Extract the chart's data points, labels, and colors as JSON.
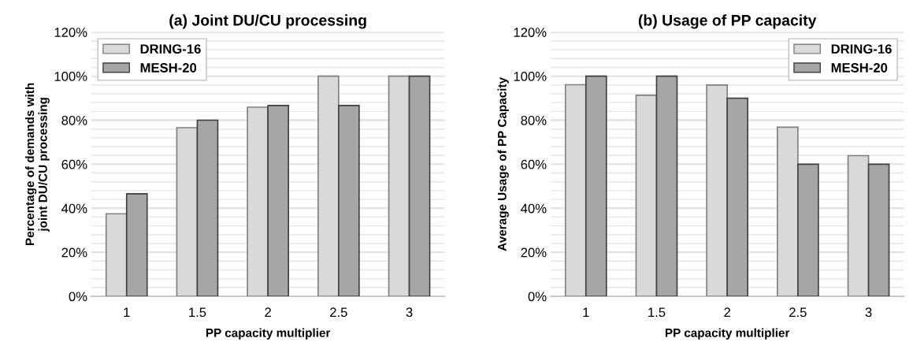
{
  "chart_data": [
    {
      "type": "bar",
      "title": "(a) Joint DU/CU processing",
      "xlabel": "PP capacity multiplier",
      "ylabel": "Percentage of demands with\njoint DU/CU processing",
      "categories": [
        "1",
        "1.5",
        "2",
        "2.5",
        "3"
      ],
      "series": [
        {
          "name": "DRING-16",
          "color": "#d9d9d9",
          "values": [
            37.5,
            76.6,
            85.9,
            100,
            100
          ]
        },
        {
          "name": "MESH-20",
          "color": "#a6a6a6",
          "values": [
            46.6,
            80,
            86.7,
            86.7,
            100
          ]
        }
      ],
      "ylim": [
        0,
        120
      ],
      "yticks": [
        {
          "value": 0,
          "label": "0%"
        },
        {
          "value": 4,
          "label": null
        },
        {
          "value": 8,
          "label": null
        },
        {
          "value": 12,
          "label": null
        },
        {
          "value": 16,
          "label": null
        },
        {
          "value": 20,
          "label": "20%"
        },
        {
          "value": 24,
          "label": null
        },
        {
          "value": 28,
          "label": null
        },
        {
          "value": 32,
          "label": null
        },
        {
          "value": 36,
          "label": null
        },
        {
          "value": 40,
          "label": "40%"
        },
        {
          "value": 44,
          "label": null
        },
        {
          "value": 48,
          "label": null
        },
        {
          "value": 52,
          "label": null
        },
        {
          "value": 56,
          "label": null
        },
        {
          "value": 60,
          "label": "60%"
        },
        {
          "value": 64,
          "label": null
        },
        {
          "value": 68,
          "label": null
        },
        {
          "value": 72,
          "label": null
        },
        {
          "value": 76,
          "label": null
        },
        {
          "value": 80,
          "label": "80%"
        },
        {
          "value": 84,
          "label": null
        },
        {
          "value": 88,
          "label": null
        },
        {
          "value": 92,
          "label": null
        },
        {
          "value": 96,
          "label": null
        },
        {
          "value": 100,
          "label": "100%"
        },
        {
          "value": 104,
          "label": null
        },
        {
          "value": 108,
          "label": null
        },
        {
          "value": 112,
          "label": null
        },
        {
          "value": 116,
          "label": null
        },
        {
          "value": 120,
          "label": "120%"
        }
      ],
      "grid": "y",
      "legend": "top left"
    },
    {
      "type": "bar",
      "title": "(b) Usage of PP capacity",
      "xlabel": "PP capacity multiplier",
      "ylabel": "Average Usage of PP Capacity",
      "categories": [
        "1",
        "1.5",
        "2",
        "2.5",
        "3"
      ],
      "series": [
        {
          "name": "DRING-16",
          "color": "#d9d9d9",
          "values": [
            96.1,
            91.3,
            96,
            76.8,
            63.9
          ]
        },
        {
          "name": "MESH-20",
          "color": "#a6a6a6",
          "values": [
            100,
            100,
            90,
            60,
            60
          ]
        }
      ],
      "ylim": [
        0,
        120
      ],
      "yticks": [
        {
          "value": 0,
          "label": "0%"
        },
        {
          "value": 4,
          "label": null
        },
        {
          "value": 8,
          "label": null
        },
        {
          "value": 12,
          "label": null
        },
        {
          "value": 16,
          "label": null
        },
        {
          "value": 20,
          "label": "20%"
        },
        {
          "value": 24,
          "label": null
        },
        {
          "value": 28,
          "label": null
        },
        {
          "value": 32,
          "label": null
        },
        {
          "value": 36,
          "label": null
        },
        {
          "value": 40,
          "label": "40%"
        },
        {
          "value": 44,
          "label": null
        },
        {
          "value": 48,
          "label": null
        },
        {
          "value": 52,
          "label": null
        },
        {
          "value": 56,
          "label": null
        },
        {
          "value": 60,
          "label": "60%"
        },
        {
          "value": 64,
          "label": null
        },
        {
          "value": 68,
          "label": null
        },
        {
          "value": 72,
          "label": null
        },
        {
          "value": 76,
          "label": null
        },
        {
          "value": 80,
          "label": "80%"
        },
        {
          "value": 84,
          "label": null
        },
        {
          "value": 88,
          "label": null
        },
        {
          "value": 92,
          "label": null
        },
        {
          "value": 96,
          "label": null
        },
        {
          "value": 100,
          "label": "100%"
        },
        {
          "value": 104,
          "label": null
        },
        {
          "value": 108,
          "label": null
        },
        {
          "value": 112,
          "label": null
        },
        {
          "value": 116,
          "label": null
        },
        {
          "value": 120,
          "label": "120%"
        }
      ],
      "grid": "y",
      "legend": "top right"
    }
  ]
}
